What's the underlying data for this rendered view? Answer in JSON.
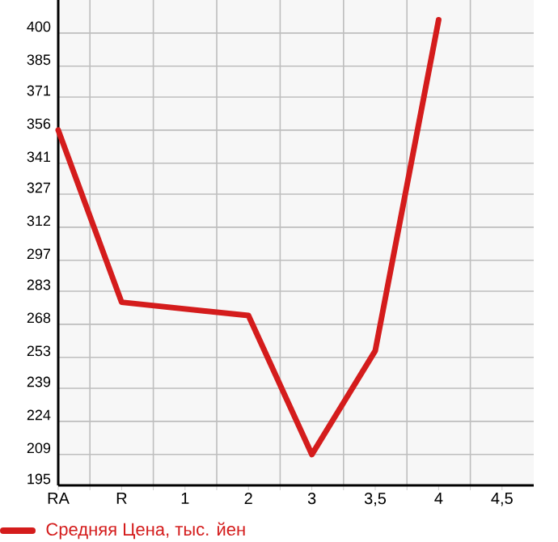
{
  "chart_data": {
    "type": "line",
    "categories": [
      "RA",
      "R",
      "1",
      "2",
      "3",
      "3,5",
      "4",
      "4,5"
    ],
    "series": [
      {
        "name": "Средняя Цена, тыс. йен",
        "color": "#d41c1c",
        "values": [
          356,
          278,
          275,
          272,
          209,
          256,
          406,
          null
        ]
      }
    ],
    "ylim": [
      195,
      415
    ],
    "yticks": [
      195,
      209,
      224,
      239,
      253,
      268,
      283,
      297,
      312,
      327,
      341,
      356,
      371,
      385,
      400
    ],
    "grid": true,
    "legend": "bottom"
  }
}
